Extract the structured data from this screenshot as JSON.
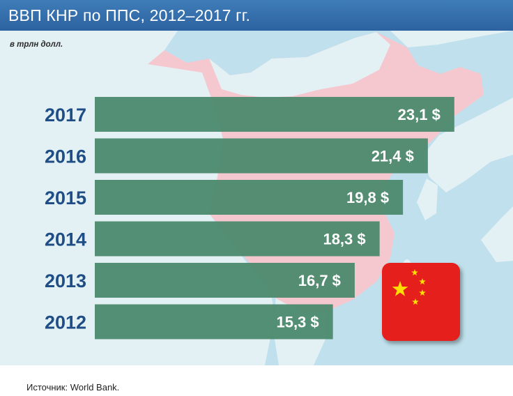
{
  "title": "ВВП КНР по ППС, 2012–2017 гг.",
  "subtitle": "в трлн долл.",
  "source": "Источник: World Bank.",
  "colors": {
    "header": "#3a74b0",
    "bar": "#4d8a6e",
    "sea": "#bfe0ec",
    "land": "#e4f1f4",
    "china": "#f5c8cf",
    "flag_red": "#e41f1c",
    "flag_star": "#ffde00",
    "year_text": "#1f4e86"
  },
  "flag_icon": "china-flag",
  "chart_data": {
    "type": "bar",
    "orientation": "horizontal",
    "categories": [
      "2017",
      "2016",
      "2015",
      "2014",
      "2013",
      "2012"
    ],
    "values": [
      23.1,
      21.4,
      19.8,
      18.3,
      16.7,
      15.3
    ],
    "value_labels": [
      "23,1 $",
      "21,4 $",
      "19,8 $",
      "18,3 $",
      "16,7 $",
      "15,3 $"
    ],
    "unit": "трлн долл.",
    "title": "ВВП КНР по ППС, 2012–2017 гг.",
    "subtitle": "в трлн долл.",
    "xlabel": "",
    "ylabel": "",
    "grid": false,
    "legend": "none"
  }
}
